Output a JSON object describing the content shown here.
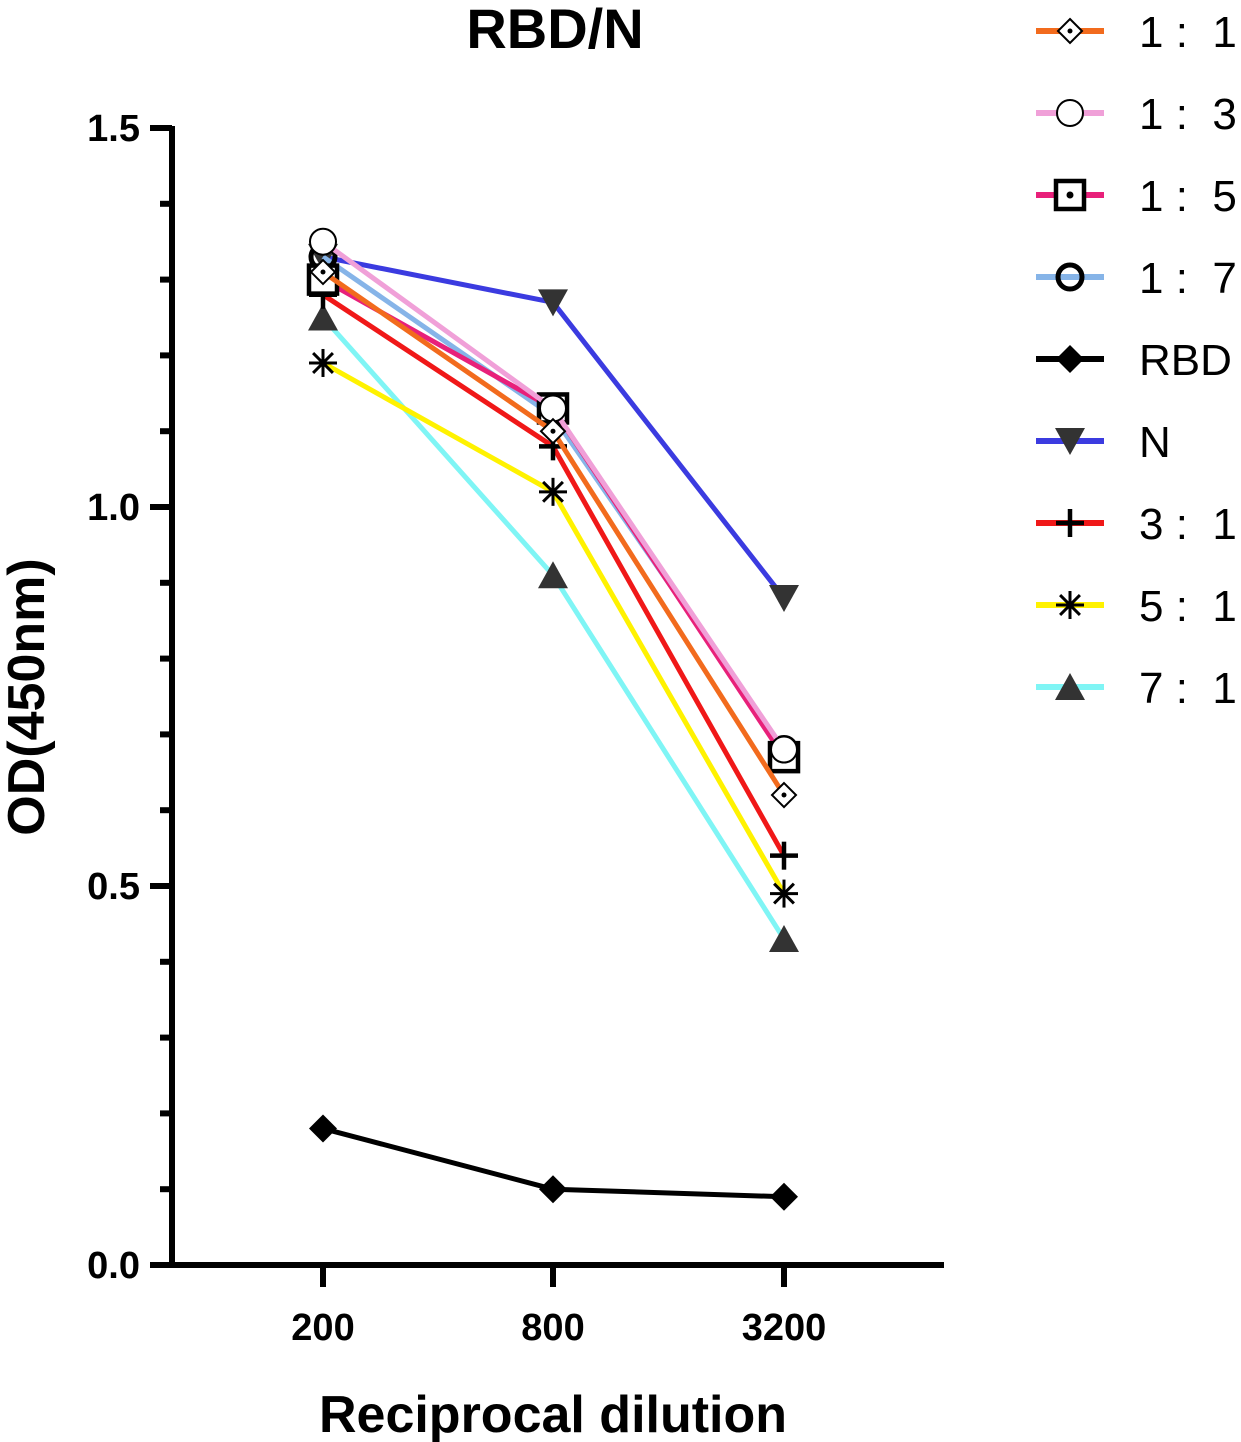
{
  "chart_data": {
    "type": "line",
    "title": "RBD/N",
    "xlabel": "Reciprocal dilution",
    "ylabel": "OD(450nm)",
    "categories": [
      "200",
      "800",
      "3200"
    ],
    "ylim": [
      0,
      1.5
    ],
    "yticks": [
      "0.0",
      "0.5",
      "1.0",
      "1.5"
    ],
    "legend_position": "top-right outside",
    "series": [
      {
        "name": "1 :  1",
        "color": "#F26B1D",
        "marker": "diamond-dot",
        "values": [
          1.31,
          1.1,
          0.62
        ]
      },
      {
        "name": "1 :  3",
        "color": "#F0A0D8",
        "marker": "circle-open",
        "values": [
          1.35,
          1.13,
          0.68
        ]
      },
      {
        "name": "1 :  5",
        "color": "#E8207A",
        "marker": "square-dot",
        "values": [
          1.3,
          1.13,
          0.67
        ]
      },
      {
        "name": "1 :  7",
        "color": "#86B4E8",
        "marker": "circle-bold",
        "values": [
          1.33,
          1.12,
          0.68
        ]
      },
      {
        "name": "RBD",
        "color": "#000000",
        "marker": "diamond-filled",
        "values": [
          0.18,
          0.1,
          0.09
        ]
      },
      {
        "name": "N",
        "color": "#3B3BE0",
        "marker": "triangle-down",
        "values": [
          1.33,
          1.27,
          0.88
        ]
      },
      {
        "name": "3 :  1",
        "color": "#F01818",
        "marker": "plus",
        "values": [
          1.28,
          1.08,
          0.54
        ]
      },
      {
        "name": "5 :  1",
        "color": "#FFF200",
        "marker": "asterisk",
        "values": [
          1.19,
          1.02,
          0.49
        ]
      },
      {
        "name": "7 :  1",
        "color": "#7FF5F5",
        "marker": "triangle-up",
        "values": [
          1.25,
          0.91,
          0.43
        ]
      }
    ]
  }
}
